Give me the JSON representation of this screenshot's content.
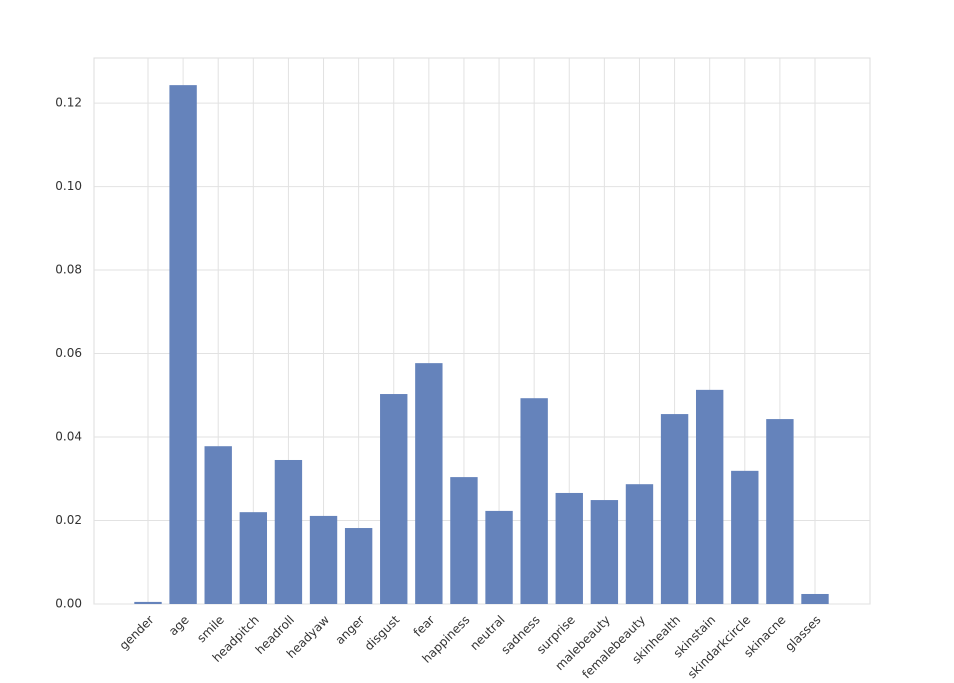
{
  "chart_data": {
    "type": "bar",
    "categories": [
      "gender",
      "age",
      "smile",
      "headpitch",
      "headroll",
      "headyaw",
      "anger",
      "disgust",
      "fear",
      "happiness",
      "neutral",
      "sadness",
      "surprise",
      "malebeauty",
      "femalebeauty",
      "skinhealth",
      "skinstain",
      "skindarkcircle",
      "skinacne",
      "glasses"
    ],
    "values": [
      0.0005,
      0.1243,
      0.0378,
      0.022,
      0.0345,
      0.0211,
      0.0182,
      0.0503,
      0.0577,
      0.0304,
      0.0223,
      0.0493,
      0.0266,
      0.0249,
      0.0287,
      0.0455,
      0.0513,
      0.0319,
      0.0443,
      0.0024
    ],
    "color": "#6583bb",
    "ylim": [
      0,
      0.1308
    ],
    "yticks": [
      {
        "value": 0,
        "label": "0.00"
      },
      {
        "value": 0.02,
        "label": "0.02"
      },
      {
        "value": 0.04,
        "label": "0.04"
      },
      {
        "value": 0.06,
        "label": "0.06"
      },
      {
        "value": 0.08,
        "label": "0.08"
      },
      {
        "value": 0.1,
        "label": "0.10"
      },
      {
        "value": 0.12,
        "label": "0.12"
      }
    ],
    "grid": true
  }
}
